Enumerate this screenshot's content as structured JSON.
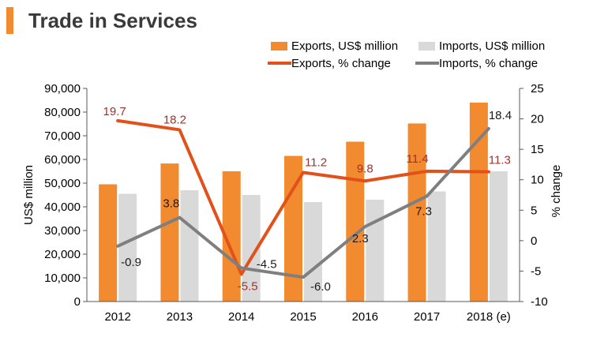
{
  "header": {
    "title": "Trade in Services"
  },
  "chart_data": {
    "type": "bar",
    "title": "Trade in Services",
    "categories": [
      "2012",
      "2013",
      "2014",
      "2015",
      "2016",
      "2017",
      "2018 (e)"
    ],
    "bar_series": [
      {
        "name": "Exports, US$ million",
        "values": [
          49500,
          58300,
          55000,
          61500,
          67500,
          75200,
          84000
        ],
        "color": "#f28a30"
      },
      {
        "name": "Imports, US$ million",
        "values": [
          45500,
          47000,
          45000,
          42000,
          43000,
          46500,
          55000
        ],
        "color": "#d9d9d9"
      }
    ],
    "line_series": [
      {
        "name": "Exports, % change",
        "values": [
          19.7,
          18.2,
          -5.5,
          11.2,
          9.8,
          11.4,
          11.3
        ],
        "labels": [
          "19.7",
          "18.2",
          "-5.5",
          "11.2",
          "9.8",
          "11.4",
          "11.3"
        ],
        "color": "#e2511a",
        "label_color": "#a0332b"
      },
      {
        "name": "Imports, % change",
        "values": [
          -0.9,
          3.8,
          -4.5,
          -6.0,
          2.3,
          7.3,
          18.4
        ],
        "labels": [
          "-0.9",
          "3.8",
          "-4.5",
          "-6.0",
          "2.3",
          "7.3",
          "18.4"
        ],
        "color": "#7f7f7f",
        "label_color": "#1a1a1a"
      }
    ],
    "y_left": {
      "label": "US$ million",
      "min": 0,
      "max": 90000,
      "ticks": [
        "0",
        "10,000",
        "20,000",
        "30,000",
        "40,000",
        "50,000",
        "60,000",
        "70,000",
        "80,000",
        "90,000"
      ]
    },
    "y_right": {
      "label": "% change",
      "min": -10,
      "max": 25,
      "ticks": [
        "-10",
        "-5",
        "0",
        "5",
        "10",
        "15",
        "20",
        "25"
      ]
    },
    "legend_position": "top-right",
    "grid": false
  }
}
